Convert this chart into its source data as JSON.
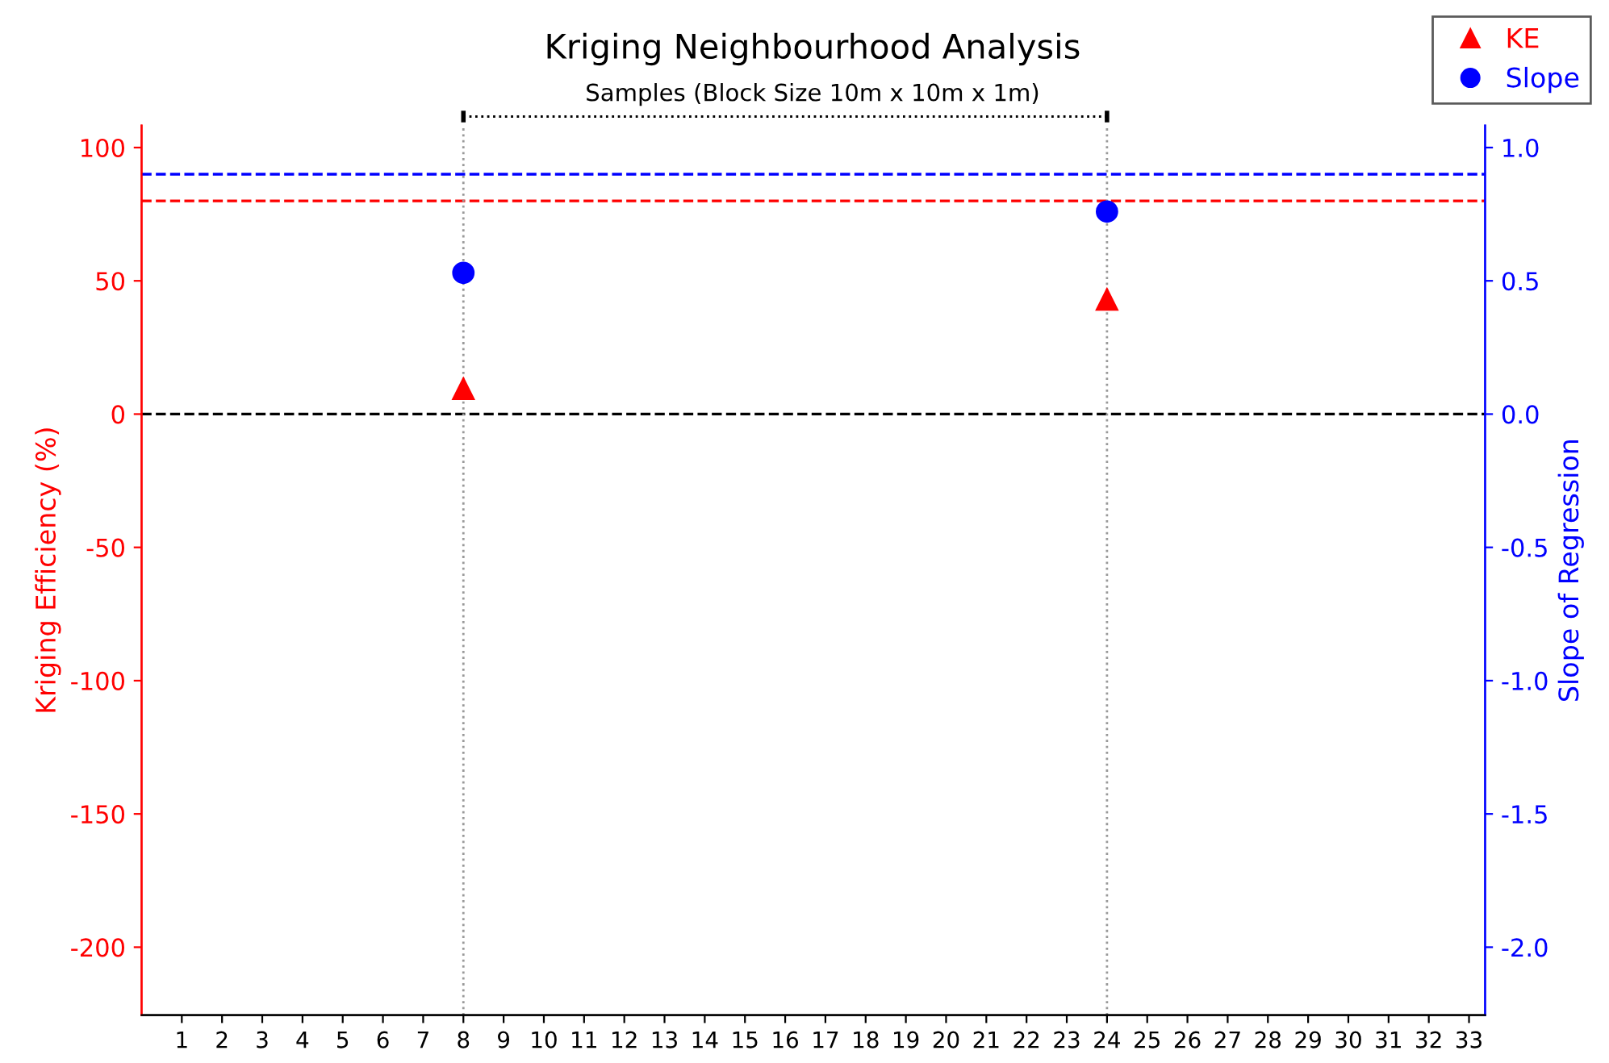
{
  "chart_data": {
    "type": "scatter",
    "title": "Kriging Neighbourhood Analysis",
    "subtitle": "Samples (Block Size 10m x 10m x 1m)",
    "ylabel": "Kriging Efficiency (%)",
    "y2label": "Slope of Regression",
    "series": [
      {
        "name": "KE",
        "color": "#ff0000",
        "marker": "triangle",
        "values": [
          9.5,
          43
        ]
      },
      {
        "name": "Slope",
        "color": "#0000ff",
        "marker": "circle",
        "axis": "y2",
        "values": [
          0.53,
          0.76
        ]
      }
    ],
    "x": [
      8,
      24
    ],
    "xlim": [
      0,
      33.4
    ],
    "xticks": [
      1,
      2,
      3,
      4,
      5,
      6,
      7,
      8,
      9,
      10,
      11,
      12,
      13,
      14,
      15,
      16,
      17,
      18,
      19,
      20,
      21,
      22,
      23,
      24,
      25,
      26,
      27,
      28,
      29,
      30,
      31,
      32,
      33
    ],
    "ylim": [
      -225.5,
      108.3
    ],
    "yticks": [
      -200,
      -150,
      -100,
      -50,
      0,
      50,
      100
    ],
    "y2lim": [
      -2.255,
      1.083
    ],
    "y2ticks": [
      {
        "value": -2,
        "label": "-2.0"
      },
      {
        "value": -1.5,
        "label": "-1.5"
      },
      {
        "value": -1,
        "label": "-1.0"
      },
      {
        "value": -0.5,
        "label": "-0.5"
      },
      {
        "value": 0,
        "label": "0.0"
      },
      {
        "value": 0.5,
        "label": "0.5"
      },
      {
        "value": 1,
        "label": "1.0"
      }
    ],
    "ref_lines": [
      {
        "axis": "y",
        "value": 0,
        "color": "#000000",
        "line_style": "dashed"
      },
      {
        "axis": "y",
        "value": 80,
        "color": "#ff0000",
        "line_style": "dashed"
      },
      {
        "axis": "y2",
        "value": 0.9,
        "color": "#0000ff",
        "line_style": "dashed"
      },
      {
        "axis": "x",
        "value": 8,
        "color": "#999999",
        "line_style": "dotted"
      },
      {
        "axis": "x",
        "value": 24,
        "color": "#999999",
        "line_style": "dotted"
      }
    ],
    "legend": "top right",
    "grid": false
  }
}
